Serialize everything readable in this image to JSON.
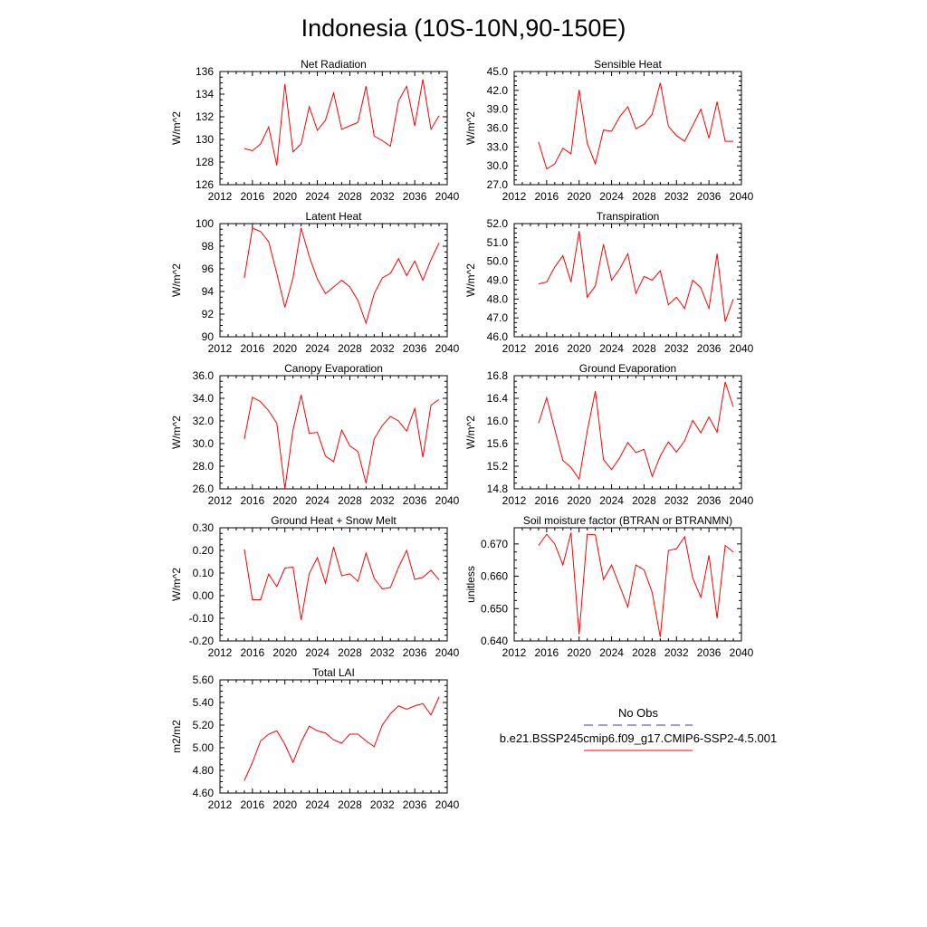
{
  "title": "Indonesia (10S-10N,90-150E)",
  "chart_data": [
    {
      "type": "line",
      "title": "Net Radiation",
      "ylabel": "W/m^2",
      "xlim": [
        2012,
        2040
      ],
      "xticks": [
        "2012",
        "2016",
        "2020",
        "2024",
        "2028",
        "2032",
        "2036",
        "2040"
      ],
      "ylim": [
        126,
        136
      ],
      "yticks": [
        "126",
        "128",
        "130",
        "132",
        "134",
        "136"
      ],
      "x": [
        2015,
        2016,
        2017,
        2018,
        2019,
        2020,
        2021,
        2022,
        2023,
        2024,
        2025,
        2026,
        2027,
        2028,
        2029,
        2030,
        2031,
        2032,
        2033,
        2034,
        2035,
        2036,
        2037,
        2038,
        2039
      ],
      "series": [
        {
          "color": "#ff0000",
          "values": [
            129.2,
            129.0,
            129.6,
            131.1,
            127.7,
            134.9,
            128.9,
            129.6,
            132.9,
            130.8,
            131.7,
            134.1,
            130.9,
            131.2,
            131.5,
            134.7,
            130.3,
            129.9,
            129.4,
            133.4,
            134.7,
            131.2,
            135.3,
            130.9,
            132.1
          ]
        }
      ]
    },
    {
      "type": "line",
      "title": "Sensible Heat",
      "ylabel": "W/m^2",
      "xlim": [
        2012,
        2040
      ],
      "xticks": [
        "2012",
        "2016",
        "2020",
        "2024",
        "2028",
        "2032",
        "2036",
        "2040"
      ],
      "ylim": [
        27,
        45
      ],
      "yticks": [
        "27.0",
        "30.0",
        "33.0",
        "36.0",
        "39.0",
        "42.0",
        "45.0"
      ],
      "x": [
        2015,
        2016,
        2017,
        2018,
        2019,
        2020,
        2021,
        2022,
        2023,
        2024,
        2025,
        2026,
        2027,
        2028,
        2029,
        2030,
        2031,
        2032,
        2033,
        2034,
        2035,
        2036,
        2037,
        2038,
        2039
      ],
      "series": [
        {
          "color": "#ff0000",
          "values": [
            33.8,
            29.5,
            30.3,
            32.8,
            31.9,
            42.1,
            33.6,
            30.3,
            35.7,
            35.5,
            37.8,
            39.4,
            35.9,
            36.6,
            38.2,
            43.2,
            36.3,
            34.8,
            33.9,
            36.4,
            39.0,
            34.4,
            40.2,
            33.9,
            33.9
          ]
        }
      ]
    },
    {
      "type": "line",
      "title": "Latent Heat",
      "ylabel": "W/m^2",
      "xlim": [
        2012,
        2040
      ],
      "xticks": [
        "2012",
        "2016",
        "2020",
        "2024",
        "2028",
        "2032",
        "2036",
        "2040"
      ],
      "ylim": [
        90,
        100
      ],
      "yticks": [
        "90",
        "92",
        "94",
        "96",
        "98",
        "100"
      ],
      "x": [
        2015,
        2016,
        2017,
        2018,
        2019,
        2020,
        2021,
        2022,
        2023,
        2024,
        2025,
        2026,
        2027,
        2028,
        2029,
        2030,
        2031,
        2032,
        2033,
        2034,
        2035,
        2036,
        2037,
        2038,
        2039
      ],
      "series": [
        {
          "color": "#ff0000",
          "values": [
            95.2,
            99.6,
            99.3,
            98.4,
            95.6,
            92.6,
            95.2,
            99.6,
            97.1,
            95.1,
            93.8,
            94.4,
            95.0,
            94.4,
            93.2,
            91.2,
            93.8,
            95.2,
            95.6,
            96.9,
            95.4,
            96.7,
            95.0,
            96.8,
            98.3
          ]
        }
      ]
    },
    {
      "type": "line",
      "title": "Transpiration",
      "ylabel": "W/m^2",
      "xlim": [
        2012,
        2040
      ],
      "xticks": [
        "2012",
        "2016",
        "2020",
        "2024",
        "2028",
        "2032",
        "2036",
        "2040"
      ],
      "ylim": [
        46,
        52
      ],
      "yticks": [
        "46.0",
        "47.0",
        "48.0",
        "49.0",
        "50.0",
        "51.0",
        "52.0"
      ],
      "x": [
        2015,
        2016,
        2017,
        2018,
        2019,
        2020,
        2021,
        2022,
        2023,
        2024,
        2025,
        2026,
        2027,
        2028,
        2029,
        2030,
        2031,
        2032,
        2033,
        2034,
        2035,
        2036,
        2037,
        2038,
        2039
      ],
      "series": [
        {
          "color": "#ff0000",
          "values": [
            48.8,
            48.9,
            49.7,
            50.3,
            48.9,
            51.6,
            48.1,
            48.7,
            50.9,
            49.0,
            49.6,
            50.4,
            48.3,
            49.2,
            49.0,
            49.5,
            47.7,
            48.1,
            47.5,
            49.0,
            48.6,
            47.5,
            50.4,
            46.8,
            48.0
          ]
        }
      ]
    },
    {
      "type": "line",
      "title": "Canopy Evaporation",
      "ylabel": "W/m^2",
      "xlim": [
        2012,
        2040
      ],
      "xticks": [
        "2012",
        "2016",
        "2020",
        "2024",
        "2028",
        "2032",
        "2036",
        "2040"
      ],
      "ylim": [
        26,
        36
      ],
      "yticks": [
        "26.0",
        "28.0",
        "30.0",
        "32.0",
        "34.0",
        "36.0"
      ],
      "x": [
        2015,
        2016,
        2017,
        2018,
        2019,
        2020,
        2021,
        2022,
        2023,
        2024,
        2025,
        2026,
        2027,
        2028,
        2029,
        2030,
        2031,
        2032,
        2033,
        2034,
        2035,
        2036,
        2037,
        2038,
        2039
      ],
      "series": [
        {
          "color": "#ff0000",
          "values": [
            30.4,
            34.1,
            33.7,
            32.9,
            31.8,
            26.0,
            31.2,
            34.3,
            30.9,
            31.0,
            28.9,
            28.4,
            31.2,
            29.8,
            29.3,
            26.5,
            30.4,
            31.6,
            32.4,
            32.0,
            31.1,
            33.1,
            28.8,
            33.4,
            33.9
          ]
        }
      ]
    },
    {
      "type": "line",
      "title": "Ground Evaporation",
      "ylabel": "W/m^2",
      "xlim": [
        2012,
        2040
      ],
      "xticks": [
        "2012",
        "2016",
        "2020",
        "2024",
        "2028",
        "2032",
        "2036",
        "2040"
      ],
      "ylim": [
        14.8,
        16.8
      ],
      "yticks": [
        "14.8",
        "15.2",
        "15.6",
        "16.0",
        "16.4",
        "16.8"
      ],
      "x": [
        2015,
        2016,
        2017,
        2018,
        2019,
        2020,
        2021,
        2022,
        2023,
        2024,
        2025,
        2026,
        2027,
        2028,
        2029,
        2030,
        2031,
        2032,
        2033,
        2034,
        2035,
        2036,
        2037,
        2038,
        2039
      ],
      "series": [
        {
          "color": "#ff0000",
          "values": [
            15.96,
            16.41,
            15.85,
            15.3,
            15.18,
            14.97,
            15.82,
            16.53,
            15.32,
            15.14,
            15.35,
            15.62,
            15.44,
            15.5,
            15.02,
            15.38,
            15.63,
            15.45,
            15.65,
            16.01,
            15.79,
            16.07,
            15.8,
            16.69,
            16.25
          ]
        }
      ]
    },
    {
      "type": "line",
      "title": "Ground Heat + Snow Melt",
      "ylabel": "W/m^2",
      "xlim": [
        2012,
        2040
      ],
      "xticks": [
        "2012",
        "2016",
        "2020",
        "2024",
        "2028",
        "2032",
        "2036",
        "2040"
      ],
      "ylim": [
        -0.2,
        0.3
      ],
      "yticks": [
        "-0.20",
        "-0.10",
        "0.00",
        "0.10",
        "0.20",
        "0.30"
      ],
      "x": [
        2015,
        2016,
        2017,
        2018,
        2019,
        2020,
        2021,
        2022,
        2023,
        2024,
        2025,
        2026,
        2027,
        2028,
        2029,
        2030,
        2031,
        2032,
        2033,
        2034,
        2035,
        2036,
        2037,
        2038,
        2039
      ],
      "series": [
        {
          "color": "#ff0000",
          "values": [
            0.205,
            -0.018,
            -0.018,
            0.095,
            0.04,
            0.122,
            0.126,
            -0.107,
            0.098,
            0.168,
            0.055,
            0.215,
            0.088,
            0.097,
            0.063,
            0.188,
            0.077,
            0.03,
            0.036,
            0.125,
            0.2,
            0.072,
            0.081,
            0.112,
            0.07
          ]
        }
      ]
    },
    {
      "type": "line",
      "title": "Soil moisture factor (BTRAN or BTRANMN)",
      "ylabel": "unitless",
      "xlim": [
        2012,
        2040
      ],
      "xticks": [
        "2012",
        "2016",
        "2020",
        "2024",
        "2028",
        "2032",
        "2036",
        "2040"
      ],
      "ylim": [
        0.64,
        0.675
      ],
      "yticks": [
        "0.640",
        "0.650",
        "0.660",
        "0.670"
      ],
      "x": [
        2015,
        2016,
        2017,
        2018,
        2019,
        2020,
        2021,
        2022,
        2023,
        2024,
        2025,
        2026,
        2027,
        2028,
        2029,
        2030,
        2031,
        2032,
        2033,
        2034,
        2035,
        2036,
        2037,
        2038,
        2039
      ],
      "series": [
        {
          "color": "#ff0000",
          "values": [
            0.6695,
            0.673,
            0.67,
            0.6635,
            0.6735,
            0.642,
            0.673,
            0.6728,
            0.659,
            0.6635,
            0.657,
            0.6505,
            0.6635,
            0.662,
            0.655,
            0.6412,
            0.668,
            0.6685,
            0.6722,
            0.6595,
            0.6535,
            0.6665,
            0.647,
            0.6695,
            0.6675
          ]
        }
      ]
    },
    {
      "type": "line",
      "title": "Total LAI",
      "ylabel": "m2/m2",
      "xlim": [
        2012,
        2040
      ],
      "xticks": [
        "2012",
        "2016",
        "2020",
        "2024",
        "2028",
        "2032",
        "2036",
        "2040"
      ],
      "ylim": [
        4.6,
        5.6
      ],
      "yticks": [
        "4.60",
        "4.80",
        "5.00",
        "5.20",
        "5.40",
        "5.60"
      ],
      "x": [
        2015,
        2016,
        2017,
        2018,
        2019,
        2020,
        2021,
        2022,
        2023,
        2024,
        2025,
        2026,
        2027,
        2028,
        2029,
        2030,
        2031,
        2032,
        2033,
        2034,
        2035,
        2036,
        2037,
        2038,
        2039
      ],
      "series": [
        {
          "color": "#ff0000",
          "values": [
            4.71,
            4.87,
            5.06,
            5.12,
            5.15,
            5.03,
            4.87,
            5.05,
            5.19,
            5.15,
            5.13,
            5.07,
            5.04,
            5.12,
            5.12,
            5.06,
            5.01,
            5.2,
            5.3,
            5.37,
            5.34,
            5.37,
            5.39,
            5.29,
            5.45
          ]
        }
      ]
    }
  ],
  "legend": {
    "items": [
      {
        "label": "No Obs",
        "color": "#3a3aa0",
        "dash": true
      },
      {
        "label": "b.e21.BSSP245cmip6.f09_g17.CMIP6-SSP2-4.5.001",
        "color": "#ff0000",
        "dash": false
      }
    ]
  }
}
